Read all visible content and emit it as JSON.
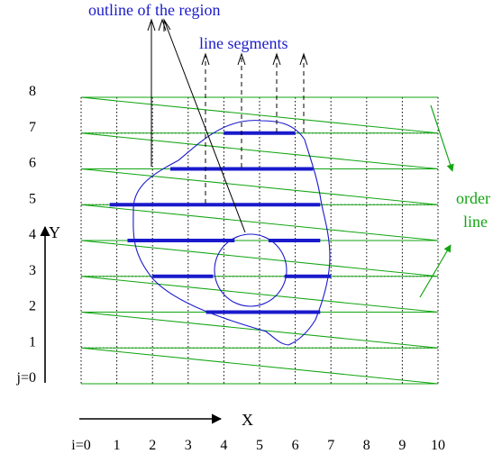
{
  "labels": {
    "outline": "outline of the region",
    "segments": "line segments",
    "order_line_1": "order",
    "order_line_2": "line",
    "y_axis": "Y",
    "x_axis": "X"
  },
  "i_ticks": [
    "i=0",
    "1",
    "2",
    "3",
    "4",
    "5",
    "6",
    "7",
    "8",
    "9",
    "10"
  ],
  "j_ticks": [
    "j=0",
    "1",
    "2",
    "3",
    "4",
    "5",
    "6",
    "7",
    "8"
  ],
  "colors": {
    "grid": "#000000",
    "order_lines": "#12a512",
    "outline": "#1a1acc",
    "segments": "#1a1acc",
    "leaders": "#000000"
  }
}
